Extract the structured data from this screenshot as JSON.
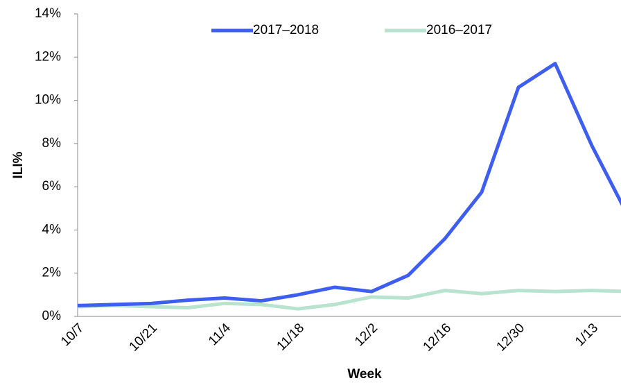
{
  "chart_data": {
    "type": "line",
    "x_label": "Week",
    "y_label": "ILI%",
    "categories": [
      "10/7",
      null,
      "10/21",
      null,
      "11/4",
      null,
      "11/18",
      null,
      "12/2",
      null,
      "12/16",
      null,
      "12/30",
      null,
      "1/13",
      null
    ],
    "series": [
      {
        "name": "2017–2018",
        "color": "#3d5ef0",
        "values": [
          0.5,
          0.55,
          0.6,
          0.75,
          0.85,
          0.72,
          1.0,
          1.35,
          1.15,
          1.9,
          3.6,
          5.75,
          10.6,
          11.7,
          7.9,
          4.6
        ]
      },
      {
        "name": "2016–2017",
        "color": "#b7e3cf",
        "values": [
          0.45,
          0.5,
          0.45,
          0.4,
          0.6,
          0.55,
          0.35,
          0.55,
          0.9,
          0.85,
          1.2,
          1.05,
          1.2,
          1.15,
          1.2,
          1.15
        ]
      }
    ],
    "ylim": [
      0,
      14
    ],
    "yticks": [
      {
        "value": 0,
        "label": "0%"
      },
      {
        "value": 2,
        "label": "2%"
      },
      {
        "value": 4,
        "label": "4%"
      },
      {
        "value": 6,
        "label": "6%"
      },
      {
        "value": 8,
        "label": "8%"
      },
      {
        "value": 10,
        "label": "10%"
      },
      {
        "value": 12,
        "label": "12%"
      },
      {
        "value": 14,
        "label": "14%"
      }
    ],
    "legend": "top"
  }
}
